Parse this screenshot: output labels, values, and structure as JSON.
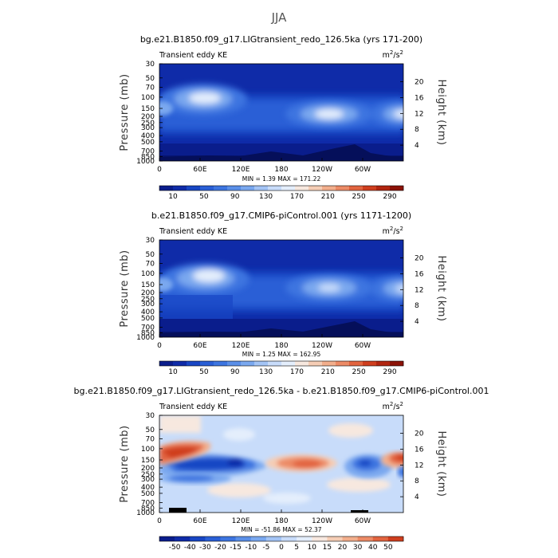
{
  "figure": {
    "season_title": "JJA"
  },
  "chart_data": [
    {
      "type": "heatmap",
      "title": "bg.e21.B1850.f09_g17.LIGtransient_redo_126.5ka (yrs 171-200)",
      "subtitle": "Transient eddy KE",
      "units_base": "m",
      "units_exp1": "2",
      "units_mid": "/s",
      "units_exp2": "2",
      "ylabel": "Pressure (mb)",
      "y2label": "Height (km)",
      "xticks": [
        "0",
        "60E",
        "120E",
        "180",
        "120W",
        "60W"
      ],
      "yticks": [
        "30",
        "50",
        "70",
        "100",
        "150",
        "200",
        "250",
        "300",
        "400",
        "500",
        "700",
        "850",
        "1000"
      ],
      "y2ticks": [
        "20",
        "16",
        "12",
        "8",
        "4"
      ],
      "stats": "MIN =     1.39   MAX = 171.22",
      "min": 1.39,
      "max": 171.22,
      "colorbar_labels": [
        "10",
        "50",
        "90",
        "130",
        "170",
        "210",
        "250",
        "290"
      ],
      "colorbar_colors": [
        "#0a1d8c",
        "#0f2ba8",
        "#1846c4",
        "#2a5fd6",
        "#3d75e0",
        "#5a8fe8",
        "#7aa8ef",
        "#a3c4f5",
        "#c8dcfa",
        "#e4eefc",
        "#f7e8df",
        "#f5cdb5",
        "#f2ae8c",
        "#ec8b66",
        "#e2643f",
        "#cf3e1e",
        "#b12510",
        "#8c1207"
      ],
      "features": [
        {
          "lon": 65,
          "p": 100,
          "level": 9
        },
        {
          "lon": 235,
          "p": 195,
          "level": 9
        },
        {
          "lon": 345,
          "p": 195,
          "level": 9
        }
      ]
    },
    {
      "type": "heatmap",
      "title": "b.e21.B1850.f09_g17.CMIP6-piControl.001 (yrs 1171-1200)",
      "subtitle": "Transient eddy KE",
      "units_base": "m",
      "units_exp1": "2",
      "units_mid": "/s",
      "units_exp2": "2",
      "ylabel": "Pressure (mb)",
      "y2label": "Height (km)",
      "xticks": [
        "0",
        "60E",
        "120E",
        "180",
        "120W",
        "60W"
      ],
      "yticks": [
        "30",
        "50",
        "70",
        "100",
        "150",
        "200",
        "250",
        "300",
        "400",
        "500",
        "700",
        "850",
        "1000"
      ],
      "y2ticks": [
        "20",
        "16",
        "12",
        "8",
        "4"
      ],
      "stats": "MIN =     1.25   MAX = 162.95",
      "min": 1.25,
      "max": 162.95,
      "colorbar_labels": [
        "10",
        "50",
        "90",
        "130",
        "170",
        "210",
        "250",
        "290"
      ],
      "colorbar_colors": [
        "#0a1d8c",
        "#0f2ba8",
        "#1846c4",
        "#2a5fd6",
        "#3d75e0",
        "#5a8fe8",
        "#7aa8ef",
        "#a3c4f5",
        "#c8dcfa",
        "#e4eefc",
        "#f7e8df",
        "#f5cdb5",
        "#f2ae8c",
        "#ec8b66",
        "#e2643f",
        "#cf3e1e",
        "#b12510",
        "#8c1207"
      ],
      "features": [
        {
          "lon": 65,
          "p": 130,
          "level": 9
        },
        {
          "lon": 235,
          "p": 190,
          "level": 8
        },
        {
          "lon": 345,
          "p": 190,
          "level": 8
        }
      ]
    },
    {
      "type": "heatmap",
      "title": "bg.e21.B1850.f09_g17.LIGtransient_redo_126.5ka - b.e21.B1850.f09_g17.CMIP6-piControl.001",
      "subtitle": "Transient eddy KE",
      "units_base": "m",
      "units_exp1": "2",
      "units_mid": "/s",
      "units_exp2": "2",
      "ylabel": "Pressure (mb)",
      "y2label": "Height (km)",
      "xticks": [
        "0",
        "60E",
        "120E",
        "180",
        "120W",
        "60W"
      ],
      "yticks": [
        "30",
        "50",
        "70",
        "100",
        "150",
        "200",
        "250",
        "300",
        "400",
        "500",
        "700",
        "850",
        "1000"
      ],
      "y2ticks": [
        "20",
        "16",
        "12",
        "8",
        "4"
      ],
      "stats": "MIN =  -51.86   MAX =   52.37",
      "min": -51.86,
      "max": 52.37,
      "colorbar_labels": [
        "-50",
        "-40",
        "-30",
        "-20",
        "-15",
        "-10",
        "-5",
        "0",
        "5",
        "10",
        "15",
        "20",
        "30",
        "40",
        "50"
      ],
      "colorbar_colors": [
        "#0a1d8c",
        "#0f2ba8",
        "#1846c4",
        "#2a5fd6",
        "#3d75e0",
        "#5a8fe8",
        "#7aa8ef",
        "#a3c4f5",
        "#c8dcfa",
        "#e4eefc",
        "#f7e8df",
        "#f5cdb5",
        "#f2ae8c",
        "#ec8b66",
        "#e2643f",
        "#cf3e1e"
      ],
      "features": [
        {
          "lon": 30,
          "p": 110,
          "sign": "positive"
        },
        {
          "lon": 60,
          "p": 150,
          "sign": "negative"
        },
        {
          "lon": 230,
          "p": 190,
          "sign": "positive"
        },
        {
          "lon": 345,
          "p": 140,
          "sign": "positive"
        }
      ]
    }
  ]
}
